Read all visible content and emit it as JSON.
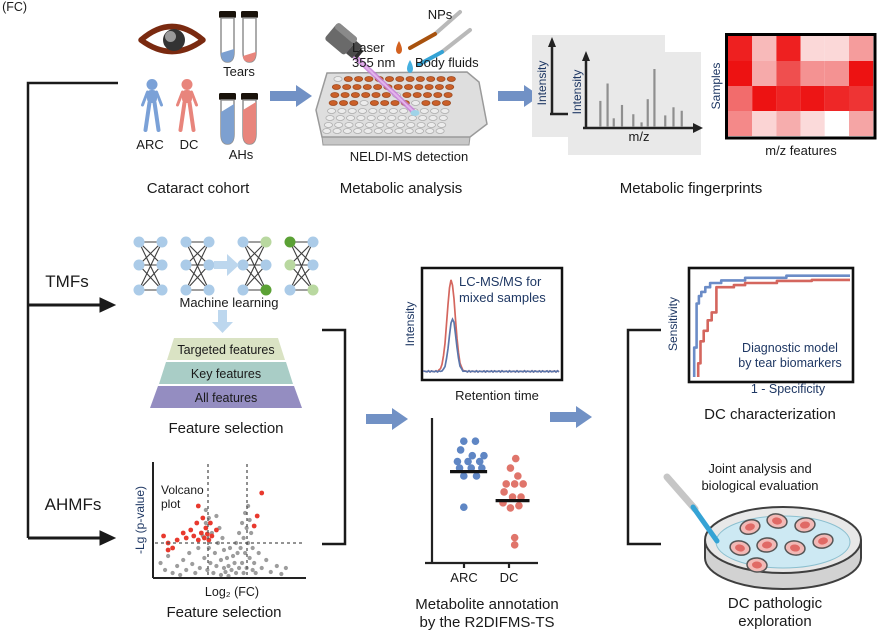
{
  "colors": {
    "accent_blue_arrow": "#7191c5",
    "light_blue_arrow": "#bdd7ee",
    "navy_label": "#1f3864",
    "black": "#1a1a1a",
    "red_dot": "#e8392e",
    "gray_dot": "#9d9d9d",
    "roc_blue": "#6b8cc7",
    "roc_red": "#d4665e",
    "well_orange": "#cb5f28",
    "nn_blue": "#abcbe8",
    "nn_light_green": "#b9d8a0",
    "nn_dark_green": "#5ba135",
    "person_blue": "#7ba1d7",
    "person_red": "#e8857c",
    "sample_blue": "#7da0d0",
    "sample_red": "#e8857c",
    "laser_beam": "#c77fd9",
    "pipette_blue": "#35a3d5",
    "eye_outline": "#7a2a10",
    "heatmap_border": "#000000"
  },
  "cohort": {
    "title": "Cataract cohort",
    "tears": "Tears",
    "ahs": "AHs",
    "arc": "ARC",
    "dc": "DC"
  },
  "analysis": {
    "title": "Metabolic analysis",
    "laser1": "Laser",
    "laser2": "355 nm",
    "nps": "NPs",
    "body_fluids": "Body fluids",
    "detection": "NELDI-MS detection"
  },
  "fingerprints": {
    "title": "Metabolic fingerprints",
    "intensity": "Intensity",
    "mz": "m/z",
    "samples": "Samples",
    "mz_features": "m/z features"
  },
  "ml": {
    "tmfs": "TMFs",
    "label": "Machine learning",
    "funnel_levels": [
      "Targeted features",
      "Key features",
      "All features"
    ],
    "funnel_colors": [
      "#dae3c4",
      "#a9cdc6",
      "#948dc1"
    ],
    "title": "Feature selection"
  },
  "volcano_panel": {
    "ahmfs": "AHMFs",
    "label1": "Volcano",
    "label2": "plot",
    "ylabel": "-Lg (p-value)",
    "xlabel": "Log₂ (FC)",
    "title": "Feature selection"
  },
  "lcms": {
    "note1": "LC-MS/MS for",
    "note2": "mixed samples",
    "ylabel": "Intensity",
    "xlabel": "Retention time"
  },
  "annotation": {
    "cat1": "ARC",
    "cat2": "DC",
    "title1": "Metabolite annotation",
    "title2": "by the R2DIFMS-TS"
  },
  "roc_panel": {
    "ylabel": "Sensitivity",
    "xlabel": "1 - Specificity",
    "note1": "Diagnostic model",
    "note2": "by tear biomarkers",
    "title": "DC characterization"
  },
  "petri": {
    "note1": "Joint analysis and",
    "note2": "biological evaluation",
    "title1": "DC pathologic",
    "title2": "exploration"
  },
  "nn": {
    "left": [
      [
        "b",
        "b",
        "b"
      ],
      [
        "b",
        "b",
        "b"
      ],
      [
        "b",
        "b",
        "b"
      ],
      [
        "b",
        "b",
        "b"
      ]
    ],
    "right": [
      [
        "b",
        "b",
        "b"
      ],
      [
        "lg",
        "b",
        "dg"
      ],
      [
        "dg",
        "lg",
        "b"
      ],
      [
        "b",
        "b",
        "lg"
      ]
    ]
  },
  "plate_wells": [
    ".ooooooooooo",
    "oooooooooooo",
    "oooooo.ooooo",
    "ooo.oooo.ooo",
    "............",
    "............",
    "............",
    "............"
  ],
  "chart_data": [
    {
      "id": "spectrum-back",
      "type": "bar",
      "ylabel": "Intensity",
      "peaks": [
        {
          "x": 0.55,
          "h": 0.5
        }
      ]
    },
    {
      "id": "spectrum-front",
      "type": "bar",
      "ylabel": "Intensity",
      "xlabel": "m/z",
      "peaks": [
        {
          "x": 0.12,
          "h": 0.45
        },
        {
          "x": 0.19,
          "h": 0.75
        },
        {
          "x": 0.25,
          "h": 0.15
        },
        {
          "x": 0.33,
          "h": 0.38
        },
        {
          "x": 0.44,
          "h": 0.22
        },
        {
          "x": 0.52,
          "h": 0.08
        },
        {
          "x": 0.58,
          "h": 0.48
        },
        {
          "x": 0.645,
          "h": 1.0
        },
        {
          "x": 0.75,
          "h": 0.2
        },
        {
          "x": 0.83,
          "h": 0.34
        },
        {
          "x": 0.91,
          "h": 0.28
        }
      ]
    },
    {
      "id": "heatmap",
      "type": "heatmap",
      "xlabel": "m/z features",
      "ylabel": "Samples",
      "rows": 4,
      "cols": 6,
      "cells": [
        [
          "#ee2020",
          "#f8baba",
          "#ee2020",
          "#fbd8d8",
          "#fbd8d8",
          "#f59c9c"
        ],
        [
          "#ed1212",
          "#f6aaaa",
          "#ef4f4f",
          "#f49292",
          "#f49292",
          "#ed1212"
        ],
        [
          "#f26c6c",
          "#ed1212",
          "#ee2424",
          "#ed1515",
          "#ee2727",
          "#ee3434"
        ],
        [
          "#f48989",
          "#fbd4d4",
          "#f6adad",
          "#fbdada",
          "#ffffff",
          "#f5a5a5"
        ]
      ]
    },
    {
      "id": "volcano",
      "type": "scatter",
      "xlabel": "Log₂ (FC)",
      "ylabel": "-Lg (p-value)",
      "thresholds": {
        "x1": 0.36,
        "x2": 0.62,
        "y": 0.3
      },
      "gray_points": [
        [
          0.05,
          0.15
        ],
        [
          0.08,
          0.08
        ],
        [
          0.1,
          0.22
        ],
        [
          0.13,
          0.05
        ],
        [
          0.16,
          0.12
        ],
        [
          0.18,
          0.03
        ],
        [
          0.2,
          0.18
        ],
        [
          0.22,
          0.08
        ],
        [
          0.24,
          0.25
        ],
        [
          0.26,
          0.14
        ],
        [
          0.28,
          0.05
        ],
        [
          0.3,
          0.3
        ],
        [
          0.31,
          0.1
        ],
        [
          0.33,
          0.42
        ],
        [
          0.34,
          0.2
        ],
        [
          0.35,
          0.55
        ],
        [
          0.36,
          0.08
        ],
        [
          0.37,
          0.3
        ],
        [
          0.38,
          0.15
        ],
        [
          0.39,
          0.45
        ],
        [
          0.4,
          0.05
        ],
        [
          0.41,
          0.25
        ],
        [
          0.42,
          0.62
        ],
        [
          0.42,
          0.12
        ],
        [
          0.43,
          0.35
        ],
        [
          0.44,
          0.5
        ],
        [
          0.45,
          0.03
        ],
        [
          0.45,
          0.18
        ],
        [
          0.46,
          0.4
        ],
        [
          0.47,
          0.1
        ],
        [
          0.47,
          0.28
        ],
        [
          0.48,
          0.06
        ],
        [
          0.49,
          0.2
        ],
        [
          0.5,
          0.12
        ],
        [
          0.5,
          0.02
        ],
        [
          0.51,
          0.3
        ],
        [
          0.52,
          0.08
        ],
        [
          0.53,
          0.22
        ],
        [
          0.54,
          0.15
        ],
        [
          0.55,
          0.05
        ],
        [
          0.55,
          0.35
        ],
        [
          0.56,
          0.25
        ],
        [
          0.57,
          0.1
        ],
        [
          0.57,
          0.45
        ],
        [
          0.58,
          0.3
        ],
        [
          0.59,
          0.55
        ],
        [
          0.59,
          0.15
        ],
        [
          0.6,
          0.4
        ],
        [
          0.6,
          0.05
        ],
        [
          0.61,
          0.65
        ],
        [
          0.61,
          0.25
        ],
        [
          0.62,
          0.5
        ],
        [
          0.62,
          0.1
        ],
        [
          0.63,
          0.35
        ],
        [
          0.63,
          0.72
        ],
        [
          0.64,
          0.2
        ],
        [
          0.64,
          0.58
        ],
        [
          0.65,
          0.45
        ],
        [
          0.66,
          0.3
        ],
        [
          0.66,
          0.08
        ],
        [
          0.67,
          0.15
        ],
        [
          0.68,
          0.05
        ],
        [
          0.7,
          0.25
        ],
        [
          0.72,
          0.1
        ],
        [
          0.75,
          0.18
        ],
        [
          0.78,
          0.06
        ],
        [
          0.82,
          0.12
        ],
        [
          0.85,
          0.04
        ],
        [
          0.88,
          0.1
        ],
        [
          0.35,
          0.68
        ],
        [
          0.37,
          0.6
        ]
      ],
      "red_points": [
        [
          0.07,
          0.42
        ],
        [
          0.1,
          0.35
        ],
        [
          0.13,
          0.3
        ],
        [
          0.16,
          0.38
        ],
        [
          0.2,
          0.45
        ],
        [
          0.22,
          0.4
        ],
        [
          0.25,
          0.48
        ],
        [
          0.27,
          0.42
        ],
        [
          0.29,
          0.55
        ],
        [
          0.3,
          0.38
        ],
        [
          0.32,
          0.45
        ],
        [
          0.33,
          0.6
        ],
        [
          0.34,
          0.4
        ],
        [
          0.35,
          0.5
        ],
        [
          0.36,
          0.44
        ],
        [
          0.37,
          0.38
        ],
        [
          0.38,
          0.55
        ],
        [
          0.39,
          0.42
        ],
        [
          0.3,
          0.72
        ],
        [
          0.42,
          0.48
        ],
        [
          0.67,
          0.52
        ],
        [
          0.69,
          0.62
        ],
        [
          0.72,
          0.85
        ],
        [
          0.1,
          0.28
        ]
      ]
    },
    {
      "id": "chromatogram",
      "type": "line",
      "xlabel": "Retention time",
      "ylabel": "Intensity",
      "series": [
        {
          "name": "DC",
          "color": "#d4665e",
          "center": 0.2,
          "sigma": 0.03,
          "height": 0.95
        },
        {
          "name": "ARC",
          "color": "#5b76ab",
          "center": 0.21,
          "sigma": 0.026,
          "height": 0.55
        }
      ]
    },
    {
      "id": "dot-plot",
      "type": "scatter",
      "categories": [
        "ARC",
        "DC"
      ],
      "groups": [
        {
          "name": "ARC",
          "color": "#5f86c4",
          "median": 0.63,
          "bar": [
            0.17,
            0.52
          ],
          "points": [
            [
              0.3,
              0.84
            ],
            [
              0.41,
              0.84
            ],
            [
              0.27,
              0.78
            ],
            [
              0.38,
              0.74
            ],
            [
              0.49,
              0.74
            ],
            [
              0.24,
              0.7
            ],
            [
              0.34,
              0.7
            ],
            [
              0.45,
              0.7
            ],
            [
              0.26,
              0.655
            ],
            [
              0.37,
              0.655
            ],
            [
              0.47,
              0.655
            ],
            [
              0.3,
              0.6
            ],
            [
              0.42,
              0.6
            ],
            [
              0.3,
              0.385
            ]
          ]
        },
        {
          "name": "DC",
          "color": "#e0756b",
          "median": 0.43,
          "bar": [
            0.6,
            0.92
          ],
          "points": [
            [
              0.79,
              0.72
            ],
            [
              0.74,
              0.655
            ],
            [
              0.81,
              0.6
            ],
            [
              0.7,
              0.545
            ],
            [
              0.78,
              0.545
            ],
            [
              0.86,
              0.545
            ],
            [
              0.68,
              0.49
            ],
            [
              0.76,
              0.455
            ],
            [
              0.84,
              0.455
            ],
            [
              0.67,
              0.415
            ],
            [
              0.74,
              0.38
            ],
            [
              0.82,
              0.395
            ],
            [
              0.78,
              0.175
            ],
            [
              0.78,
              0.125
            ]
          ]
        }
      ]
    },
    {
      "id": "roc",
      "type": "line",
      "xlabel": "1 - Specificity",
      "ylabel": "Sensitivity",
      "series": [
        {
          "name": "blue-model",
          "color": "#6b8cc7",
          "points": [
            [
              0.02,
              0
            ],
            [
              0.02,
              0.28
            ],
            [
              0.035,
              0.28
            ],
            [
              0.035,
              0.7
            ],
            [
              0.05,
              0.7
            ],
            [
              0.05,
              0.77
            ],
            [
              0.065,
              0.77
            ],
            [
              0.065,
              0.81
            ],
            [
              0.09,
              0.81
            ],
            [
              0.09,
              0.855
            ],
            [
              0.12,
              0.855
            ],
            [
              0.12,
              0.895
            ],
            [
              0.19,
              0.895
            ],
            [
              0.19,
              0.92
            ],
            [
              0.34,
              0.92
            ],
            [
              0.34,
              0.945
            ],
            [
              0.6,
              0.945
            ],
            [
              0.6,
              0.965
            ],
            [
              1,
              0.965
            ]
          ]
        },
        {
          "name": "red-model",
          "color": "#d4665e",
          "points": [
            [
              0.045,
              0
            ],
            [
              0.045,
              0.13
            ],
            [
              0.06,
              0.13
            ],
            [
              0.06,
              0.34
            ],
            [
              0.08,
              0.34
            ],
            [
              0.08,
              0.44
            ],
            [
              0.105,
              0.44
            ],
            [
              0.105,
              0.54
            ],
            [
              0.13,
              0.54
            ],
            [
              0.13,
              0.615
            ],
            [
              0.16,
              0.615
            ],
            [
              0.16,
              0.855
            ],
            [
              0.27,
              0.855
            ],
            [
              0.27,
              0.875
            ],
            [
              0.34,
              0.875
            ],
            [
              0.34,
              0.895
            ],
            [
              0.54,
              0.895
            ],
            [
              0.54,
              0.915
            ],
            [
              0.76,
              0.915
            ],
            [
              0.76,
              0.925
            ],
            [
              1,
              0.925
            ]
          ]
        }
      ]
    }
  ]
}
